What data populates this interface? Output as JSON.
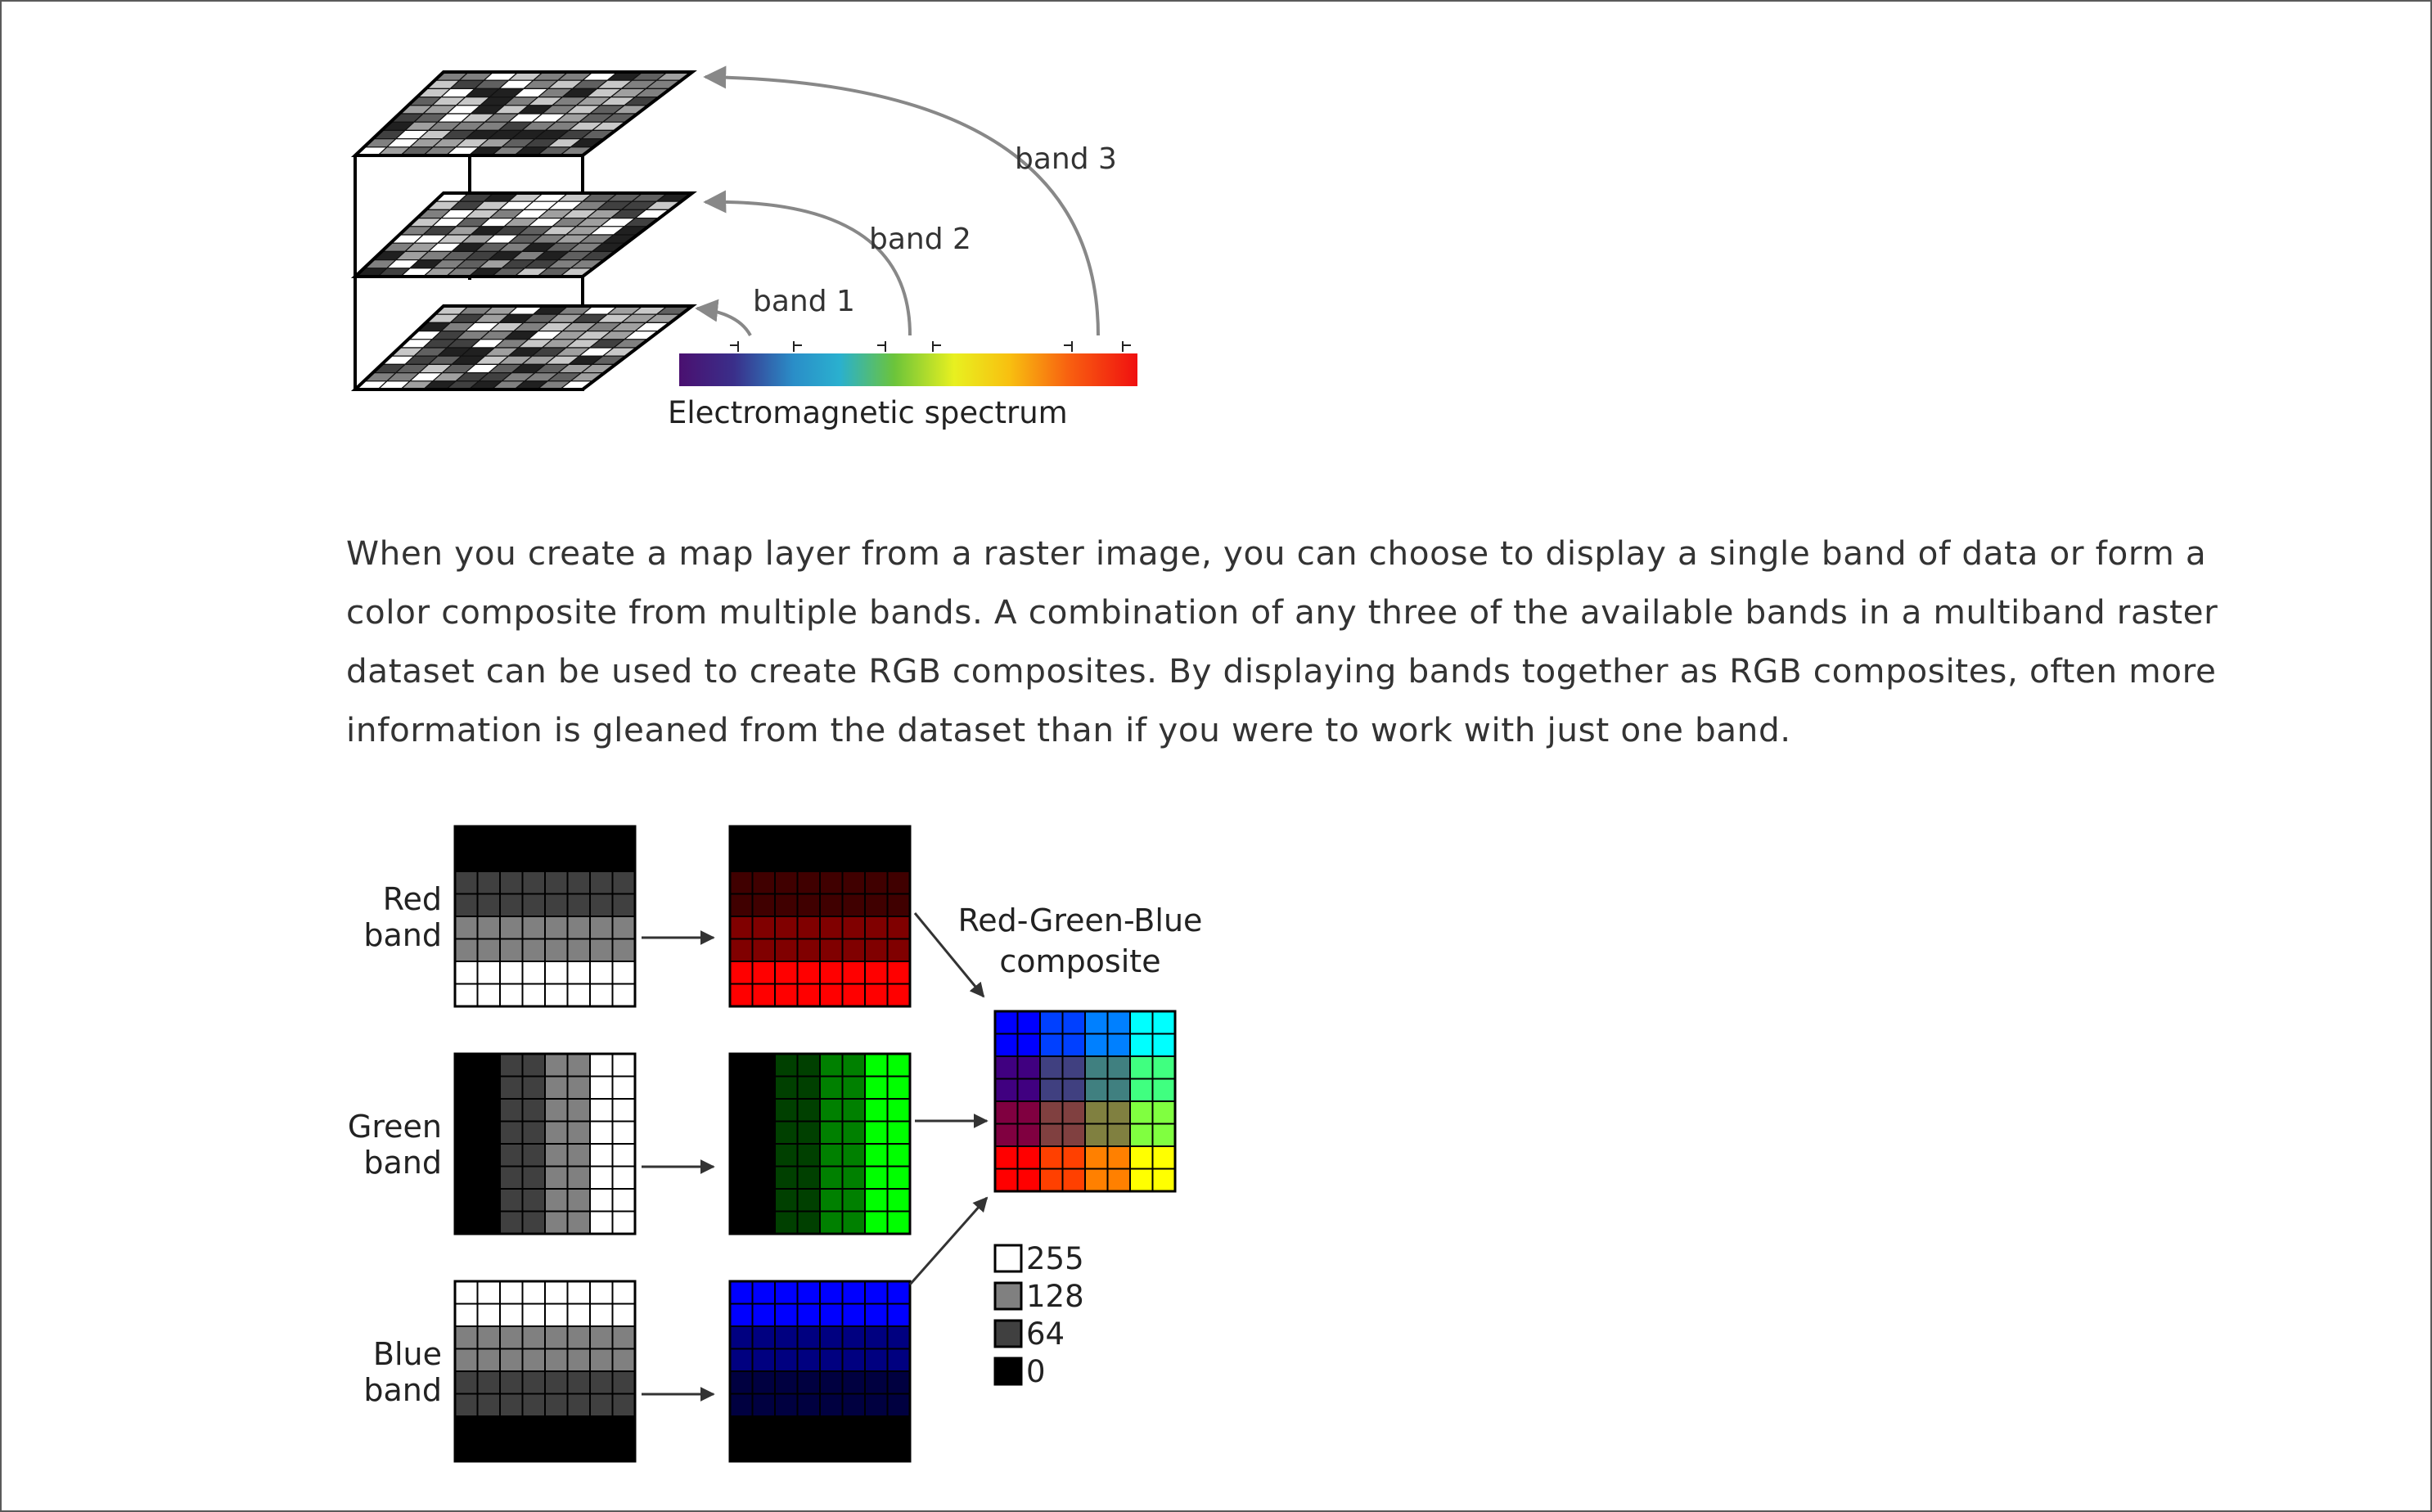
{
  "figure1": {
    "band_labels": [
      "band 1",
      "band 2",
      "band 3"
    ],
    "spectrum_label": "Electromagnetic spectrum"
  },
  "paragraph": "When you create a map layer from a raster image, you can choose to display a single band of data or form a color composite from multiple bands. A combination of any three of the available bands in a multiband raster dataset can be used to create RGB composites. By displaying bands together as RGB composites, often more information is gleaned from the dataset than if you were to work with just one band.",
  "figure2": {
    "red_band": [
      "Red",
      "band"
    ],
    "green_band": [
      "Green",
      "band"
    ],
    "blue_band": [
      "Blue",
      "band"
    ],
    "composite": [
      "Red-Green-Blue",
      "composite"
    ],
    "legend": [
      {
        "value": "255",
        "color": "#ffffff"
      },
      {
        "value": "128",
        "color": "#808080"
      },
      {
        "value": "64",
        "color": "#404040"
      },
      {
        "value": "0",
        "color": "#000000"
      }
    ]
  }
}
